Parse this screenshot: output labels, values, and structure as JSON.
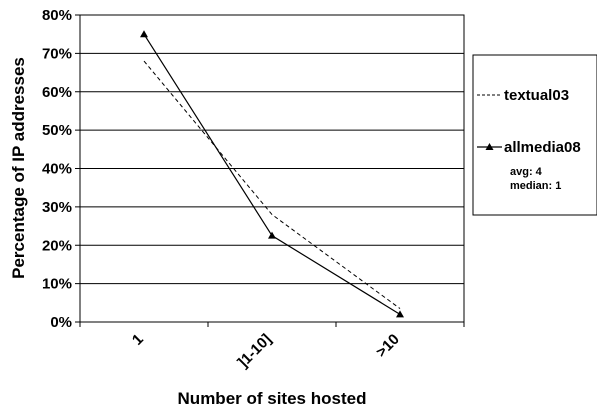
{
  "chart_data": {
    "type": "line",
    "categories": [
      "1",
      "]1-10]",
      ">10"
    ],
    "series": [
      {
        "name": "textual03",
        "values": [
          68,
          28,
          3.5
        ],
        "line_style": "dashed",
        "color": "#000000",
        "marker": "none"
      },
      {
        "name": "allmedia08",
        "values": [
          75,
          22.5,
          2
        ],
        "line_style": "solid",
        "color": "#000000",
        "marker": "triangle"
      }
    ],
    "legend_notes": [
      "avg: 4",
      "median: 1"
    ],
    "title": "",
    "xlabel": "Number of sites hosted",
    "ylabel": "Percentage of IP addresses",
    "ylim": [
      0,
      80
    ],
    "yticks": [
      "0%",
      "10%",
      "20%",
      "30%",
      "40%",
      "50%",
      "60%",
      "70%",
      "80%"
    ],
    "grid": "horizontal",
    "legend_position": "right"
  }
}
